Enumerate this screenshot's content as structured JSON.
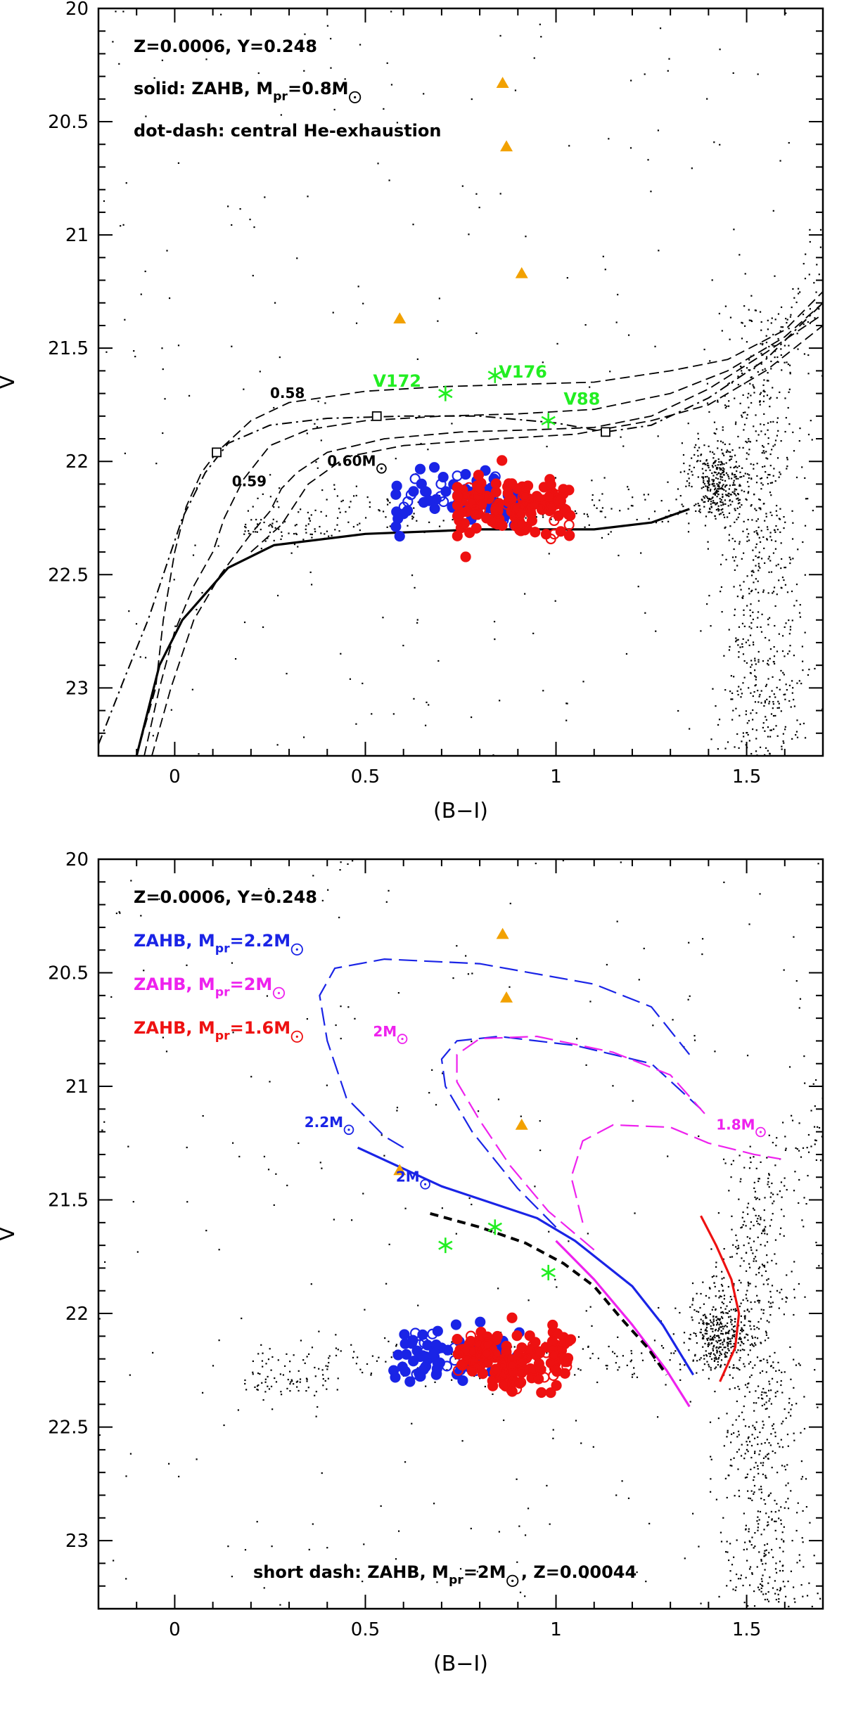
{
  "colors": {
    "blue": "#1a24e6",
    "red": "#ee1111",
    "magenta": "#ee22ee",
    "green": "#22ee22",
    "orange": "#f2a100",
    "black": "#000000"
  },
  "chart_data": [
    {
      "type": "scatter",
      "id": "top",
      "xlabel": "(B−I)",
      "ylabel": "V",
      "xlim": [
        -0.2,
        1.7
      ],
      "ylim": [
        23.3,
        20.0
      ],
      "x_ticks": [
        0,
        0.5,
        1,
        1.5
      ],
      "x_tick_labels": [
        "0",
        "0.5",
        "1",
        "1.5"
      ],
      "y_ticks": [
        20,
        20.5,
        21,
        21.5,
        22,
        22.5,
        23
      ],
      "y_tick_labels": [
        "20",
        "20.5",
        "21",
        "21.5",
        "22",
        "22.5",
        "23"
      ],
      "legend": [
        {
          "text": "Z=0.0006, Y=0.248"
        },
        {
          "text": "solid: ZAHB, M",
          "sub": "pr",
          "tail": "=0.8M",
          "sun": true
        },
        {
          "text": "dot-dash: central He-exhaustion",
          "sub": "",
          "tail": "",
          "sun": false
        }
      ],
      "annotations": [
        {
          "text": "0.58",
          "x": 0.25,
          "y": 21.72,
          "sun": false
        },
        {
          "text": "0.59",
          "x": 0.15,
          "y": 22.11,
          "sun": false
        },
        {
          "text": "0.60M",
          "x": 0.4,
          "y": 22.02,
          "sun": true
        }
      ],
      "variables": [
        {
          "name": "V172",
          "x": 0.71,
          "y": 21.7,
          "lx": 0.52,
          "ly": 21.67
        },
        {
          "name": "V176",
          "x": 0.84,
          "y": 21.62,
          "lx": 0.85,
          "ly": 21.63
        },
        {
          "name": "V88",
          "x": 0.98,
          "y": 21.82,
          "lx": 1.02,
          "ly": 21.75
        }
      ],
      "triangles": [
        [
          0.86,
          20.33
        ],
        [
          0.87,
          20.61
        ],
        [
          0.91,
          21.17
        ],
        [
          0.59,
          21.37
        ]
      ],
      "boxes": [
        [
          0.11,
          21.96
        ],
        [
          0.53,
          21.8
        ],
        [
          1.13,
          21.87
        ]
      ],
      "series": [
        {
          "name": "ZAHB M_pr=0.8",
          "style": "solid",
          "color": "black",
          "points": [
            [
              -0.1,
              23.3
            ],
            [
              -0.04,
              22.9
            ],
            [
              0.02,
              22.7
            ],
            [
              0.14,
              22.47
            ],
            [
              0.26,
              22.37
            ],
            [
              0.5,
              22.32
            ],
            [
              0.8,
              22.3
            ],
            [
              1.1,
              22.3
            ],
            [
              1.25,
              22.27
            ],
            [
              1.35,
              22.21
            ]
          ]
        },
        {
          "name": "central He-exhaustion",
          "style": "dashdot",
          "color": "black",
          "points": [
            [
              -0.2,
              23.25
            ],
            [
              -0.13,
              22.95
            ],
            [
              -0.07,
              22.7
            ],
            [
              -0.03,
              22.5
            ],
            [
              0.02,
              22.25
            ],
            [
              0.08,
              22.05
            ],
            [
              0.14,
              21.92
            ],
            [
              0.25,
              21.84
            ],
            [
              0.4,
              21.81
            ],
            [
              0.6,
              21.8
            ],
            [
              0.8,
              21.8
            ],
            [
              1.0,
              21.83
            ],
            [
              1.13,
              21.87
            ],
            [
              1.25,
              21.84
            ],
            [
              1.4,
              21.72
            ],
            [
              1.55,
              21.55
            ],
            [
              1.7,
              21.3
            ]
          ]
        },
        {
          "name": "0.58",
          "style": "dash",
          "color": "black",
          "points": [
            [
              -0.1,
              23.3
            ],
            [
              -0.05,
              23.0
            ],
            [
              -0.03,
              22.7
            ],
            [
              0.0,
              22.4
            ],
            [
              0.03,
              22.2
            ],
            [
              0.07,
              22.05
            ],
            [
              0.11,
              21.96
            ],
            [
              0.2,
              21.82
            ],
            [
              0.3,
              21.74
            ],
            [
              0.5,
              21.69
            ],
            [
              0.7,
              21.67
            ],
            [
              0.9,
              21.66
            ],
            [
              1.1,
              21.65
            ],
            [
              1.3,
              21.6
            ],
            [
              1.45,
              21.55
            ],
            [
              1.6,
              21.42
            ],
            [
              1.7,
              21.25
            ]
          ]
        },
        {
          "name": "0.59",
          "style": "dash",
          "color": "black",
          "points": [
            [
              -0.08,
              23.3
            ],
            [
              -0.04,
              23.0
            ],
            [
              0.0,
              22.75
            ],
            [
              0.05,
              22.55
            ],
            [
              0.1,
              22.4
            ],
            [
              0.13,
              22.25
            ],
            [
              0.18,
              22.08
            ],
            [
              0.25,
              21.93
            ],
            [
              0.35,
              21.86
            ],
            [
              0.5,
              21.82
            ],
            [
              0.7,
              21.8
            ],
            [
              0.9,
              21.79
            ],
            [
              1.1,
              21.77
            ],
            [
              1.3,
              21.7
            ],
            [
              1.45,
              21.6
            ],
            [
              1.6,
              21.45
            ],
            [
              1.7,
              21.3
            ]
          ]
        },
        {
          "name": "0.60",
          "style": "dash",
          "color": "black",
          "points": [
            [
              -0.06,
              23.3
            ],
            [
              -0.01,
              23.0
            ],
            [
              0.05,
              22.7
            ],
            [
              0.12,
              22.5
            ],
            [
              0.2,
              22.32
            ],
            [
              0.25,
              22.22
            ],
            [
              0.28,
              22.12
            ],
            [
              0.32,
              22.05
            ],
            [
              0.4,
              21.96
            ],
            [
              0.55,
              21.9
            ],
            [
              0.75,
              21.87
            ],
            [
              0.95,
              21.86
            ],
            [
              1.1,
              21.85
            ],
            [
              1.25,
              21.8
            ],
            [
              1.4,
              21.68
            ],
            [
              1.55,
              21.52
            ],
            [
              1.7,
              21.35
            ]
          ]
        },
        {
          "name": "0.60b",
          "style": "dash",
          "color": "black",
          "points": [
            [
              0.2,
              22.4
            ],
            [
              0.28,
              22.28
            ],
            [
              0.35,
              22.1
            ],
            [
              0.45,
              21.98
            ],
            [
              0.6,
              21.93
            ],
            [
              0.85,
              21.9
            ],
            [
              1.05,
              21.88
            ],
            [
              1.25,
              21.82
            ],
            [
              1.4,
              21.75
            ],
            [
              1.55,
              21.6
            ],
            [
              1.7,
              21.4
            ]
          ]
        }
      ]
    },
    {
      "type": "scatter",
      "id": "bottom",
      "xlabel": "(B−I)",
      "ylabel": "V",
      "xlim": [
        -0.2,
        1.7
      ],
      "ylim": [
        23.3,
        20.0
      ],
      "x_ticks": [
        0,
        0.5,
        1,
        1.5
      ],
      "x_tick_labels": [
        "0",
        "0.5",
        "1",
        "1.5"
      ],
      "y_ticks": [
        20,
        20.5,
        21,
        21.5,
        22,
        22.5,
        23
      ],
      "y_tick_labels": [
        "20",
        "20.5",
        "21",
        "21.5",
        "22",
        "22.5",
        "23"
      ],
      "legend": [
        {
          "text": "Z=0.0006, Y=0.248",
          "color": "black"
        },
        {
          "text": "ZAHB, M",
          "sub": "pr",
          "tail": "=2.2M",
          "sun": true,
          "color": "blue"
        },
        {
          "text": "ZAHB, M",
          "sub": "pr",
          "tail": "=2M",
          "sun": true,
          "color": "magenta"
        },
        {
          "text": "ZAHB, M",
          "sub": "pr",
          "tail": "=1.6M",
          "sun": true,
          "color": "red"
        }
      ],
      "footnote": {
        "text": "short dash: ZAHB, M",
        "sub": "pr",
        "tail": "=2M",
        "sun_tail": ", Z=0.00044"
      },
      "annotations": [
        {
          "text": "2.2M",
          "x": 0.34,
          "y": 21.18,
          "color": "blue",
          "sun": true
        },
        {
          "text": "2M",
          "x": 0.58,
          "y": 21.42,
          "color": "blue",
          "sun": true
        },
        {
          "text": "2M",
          "x": 0.52,
          "y": 20.78,
          "color": "magenta",
          "sun": true
        },
        {
          "text": "1.8M",
          "x": 1.42,
          "y": 21.19,
          "color": "magenta",
          "sun": true
        }
      ],
      "variables": [
        {
          "name": "",
          "x": 0.71,
          "y": 21.7
        },
        {
          "name": "",
          "x": 0.84,
          "y": 21.62
        },
        {
          "name": "",
          "x": 0.98,
          "y": 21.82
        }
      ],
      "triangles": [
        [
          0.86,
          20.33
        ],
        [
          0.87,
          20.61
        ],
        [
          0.91,
          21.17
        ],
        [
          0.59,
          21.37
        ]
      ],
      "series": [
        {
          "name": "2.2 solid",
          "style": "solid",
          "color": "blue",
          "points": [
            [
              0.48,
              21.27
            ],
            [
              0.7,
              21.44
            ],
            [
              0.95,
              21.58
            ],
            [
              1.05,
              21.68
            ],
            [
              1.2,
              21.88
            ],
            [
              1.28,
              22.05
            ],
            [
              1.36,
              22.27
            ]
          ]
        },
        {
          "name": "2.2 track",
          "style": "longdash",
          "color": "blue",
          "points": [
            [
              0.6,
              21.27
            ],
            [
              0.55,
              21.22
            ],
            [
              0.45,
              21.05
            ],
            [
              0.4,
              20.8
            ],
            [
              0.38,
              20.6
            ],
            [
              0.42,
              20.48
            ],
            [
              0.55,
              20.44
            ],
            [
              0.8,
              20.46
            ],
            [
              1.1,
              20.55
            ],
            [
              1.25,
              20.65
            ],
            [
              1.35,
              20.86
            ]
          ]
        },
        {
          "name": "2 blue track",
          "style": "longdash",
          "color": "blue",
          "points": [
            [
              1.0,
              21.62
            ],
            [
              0.9,
              21.45
            ],
            [
              0.78,
              21.2
            ],
            [
              0.71,
              21.0
            ],
            [
              0.7,
              20.88
            ],
            [
              0.74,
              20.8
            ],
            [
              0.85,
              20.78
            ],
            [
              1.05,
              20.82
            ],
            [
              1.25,
              20.9
            ],
            [
              1.38,
              21.1
            ]
          ]
        },
        {
          "name": "2 magenta solid",
          "style": "solid",
          "color": "magenta",
          "points": [
            [
              1.0,
              21.68
            ],
            [
              1.1,
              21.85
            ],
            [
              1.2,
              22.05
            ],
            [
              1.29,
              22.25
            ],
            [
              1.35,
              22.41
            ]
          ]
        },
        {
          "name": "2 magenta track",
          "style": "longdash",
          "color": "magenta",
          "points": [
            [
              1.1,
              21.72
            ],
            [
              0.98,
              21.55
            ],
            [
              0.88,
              21.35
            ],
            [
              0.8,
              21.15
            ],
            [
              0.74,
              20.98
            ],
            [
              0.74,
              20.86
            ],
            [
              0.8,
              20.79
            ],
            [
              0.95,
              20.78
            ],
            [
              1.15,
              20.85
            ],
            [
              1.3,
              20.95
            ],
            [
              1.39,
              21.12
            ]
          ]
        },
        {
          "name": "1.8 track",
          "style": "longdash",
          "color": "magenta",
          "points": [
            [
              1.07,
              21.6
            ],
            [
              1.04,
              21.4
            ],
            [
              1.07,
              21.24
            ],
            [
              1.15,
              21.17
            ],
            [
              1.3,
              21.18
            ],
            [
              1.4,
              21.25
            ],
            [
              1.52,
              21.3
            ],
            [
              1.59,
              21.32
            ]
          ]
        },
        {
          "name": "1.6 ZAHB",
          "style": "solid",
          "color": "red",
          "points": [
            [
              1.38,
              21.57
            ],
            [
              1.42,
              21.7
            ],
            [
              1.46,
              21.85
            ],
            [
              1.48,
              22.0
            ],
            [
              1.47,
              22.15
            ],
            [
              1.43,
              22.3
            ]
          ]
        },
        {
          "name": "short dash Z=0.00044",
          "style": "shortdash",
          "color": "black",
          "points": [
            [
              0.67,
              21.56
            ],
            [
              0.8,
              21.62
            ],
            [
              0.92,
              21.69
            ],
            [
              1.02,
              21.78
            ],
            [
              1.1,
              21.88
            ],
            [
              1.17,
              22.02
            ],
            [
              1.24,
              22.15
            ],
            [
              1.29,
              22.27
            ]
          ]
        }
      ]
    }
  ]
}
